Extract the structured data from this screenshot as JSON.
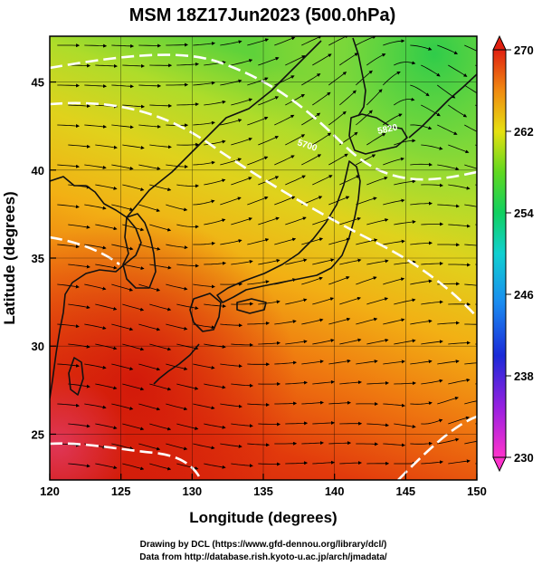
{
  "title": "MSM 18Z17Jun2023 (500.0hPa)",
  "credits": [
    "Drawing by DCL (https://www.gfd-dennou.org/library/dcl/)",
    "Data from http://database.rish.kyoto-u.ac.jp/arch/jmadata/"
  ],
  "map": {
    "x_label": "Longitude (degrees)",
    "y_label": "Latitude  (degrees)",
    "lon_range": [
      120,
      150
    ],
    "lat_range": [
      22.4,
      47.6
    ],
    "lon_ticks": [
      120,
      125,
      130,
      135,
      140,
      145,
      150
    ],
    "lat_ticks": [
      25,
      30,
      35,
      40,
      45
    ],
    "grid": true,
    "contour_labels": [
      "5700",
      "5820"
    ]
  },
  "colorbar": {
    "range": [
      230,
      270
    ],
    "tick_labels": [
      "270",
      "262",
      "254",
      "246",
      "238",
      "230"
    ],
    "tick_values": [
      270,
      262,
      254,
      246,
      238,
      230
    ]
  }
}
